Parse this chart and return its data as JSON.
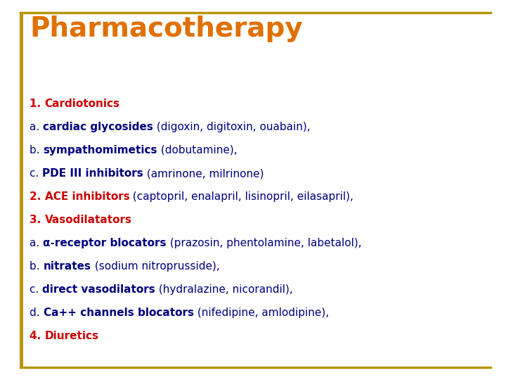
{
  "title": "Pharmacotherapy",
  "title_color": "#E07000",
  "title_fontsize": 28,
  "bg_color": "#FFFFFF",
  "border_color": "#B8960C",
  "left_bar_color": "#B8960C",
  "text_fontsize": 11,
  "lines": [
    {
      "prefix": "1. ",
      "prefix_bold": true,
      "prefix_color": "#CC0000",
      "bold_text": "Cardiotonics",
      "bold_color": "#CC0000",
      "normal_text": "",
      "normal_color": "#000080"
    },
    {
      "prefix": "a. ",
      "prefix_bold": false,
      "prefix_color": "#000080",
      "bold_text": "cardiac glycosides",
      "bold_color": "#000080",
      "normal_text": " (digoxin, digitoxin, ouabain),",
      "normal_color": "#000080"
    },
    {
      "prefix": "b. ",
      "prefix_bold": false,
      "prefix_color": "#000080",
      "bold_text": "sympathomimetics",
      "bold_color": "#000080",
      "normal_text": " (dobutamine),",
      "normal_color": "#000080"
    },
    {
      "prefix": "c. ",
      "prefix_bold": false,
      "prefix_color": "#000080",
      "bold_text": "PDE III inhibitors",
      "bold_color": "#000080",
      "normal_text": " (amrinone, milrinone)",
      "normal_color": "#000080"
    },
    {
      "prefix": "2. ",
      "prefix_bold": true,
      "prefix_color": "#CC0000",
      "bold_text": "ACE inhibitors",
      "bold_color": "#CC0000",
      "normal_text": " (captopril, enalapril, lisinopril, eilasapril),",
      "normal_color": "#000080"
    },
    {
      "prefix": "3. ",
      "prefix_bold": true,
      "prefix_color": "#CC0000",
      "bold_text": "Vasodilatators",
      "bold_color": "#CC0000",
      "normal_text": "",
      "normal_color": "#000080"
    },
    {
      "prefix": "a. ",
      "prefix_bold": false,
      "prefix_color": "#000080",
      "bold_text": "α-receptor blocators",
      "bold_color": "#000080",
      "normal_text": " (prazosin, phentolamine, labetalol),",
      "normal_color": "#000080"
    },
    {
      "prefix": "b. ",
      "prefix_bold": false,
      "prefix_color": "#000080",
      "bold_text": "nitrates",
      "bold_color": "#000080",
      "normal_text": " (sodium nitroprusside),",
      "normal_color": "#000080"
    },
    {
      "prefix": "c. ",
      "prefix_bold": false,
      "prefix_color": "#000080",
      "bold_text": "direct vasodilators",
      "bold_color": "#000080",
      "normal_text": " (hydralazine, nicorandil),",
      "normal_color": "#000080"
    },
    {
      "prefix": "d. ",
      "prefix_bold": false,
      "prefix_color": "#000080",
      "bold_text": "Ca++ channels blocators",
      "bold_color": "#000080",
      "normal_text": " (nifedipine, amlodipine),",
      "normal_color": "#000080"
    },
    {
      "prefix": "4. ",
      "prefix_bold": true,
      "prefix_color": "#CC0000",
      "bold_text": "Diuretics",
      "bold_color": "#CC0000",
      "normal_text": "",
      "normal_color": "#000080"
    }
  ]
}
